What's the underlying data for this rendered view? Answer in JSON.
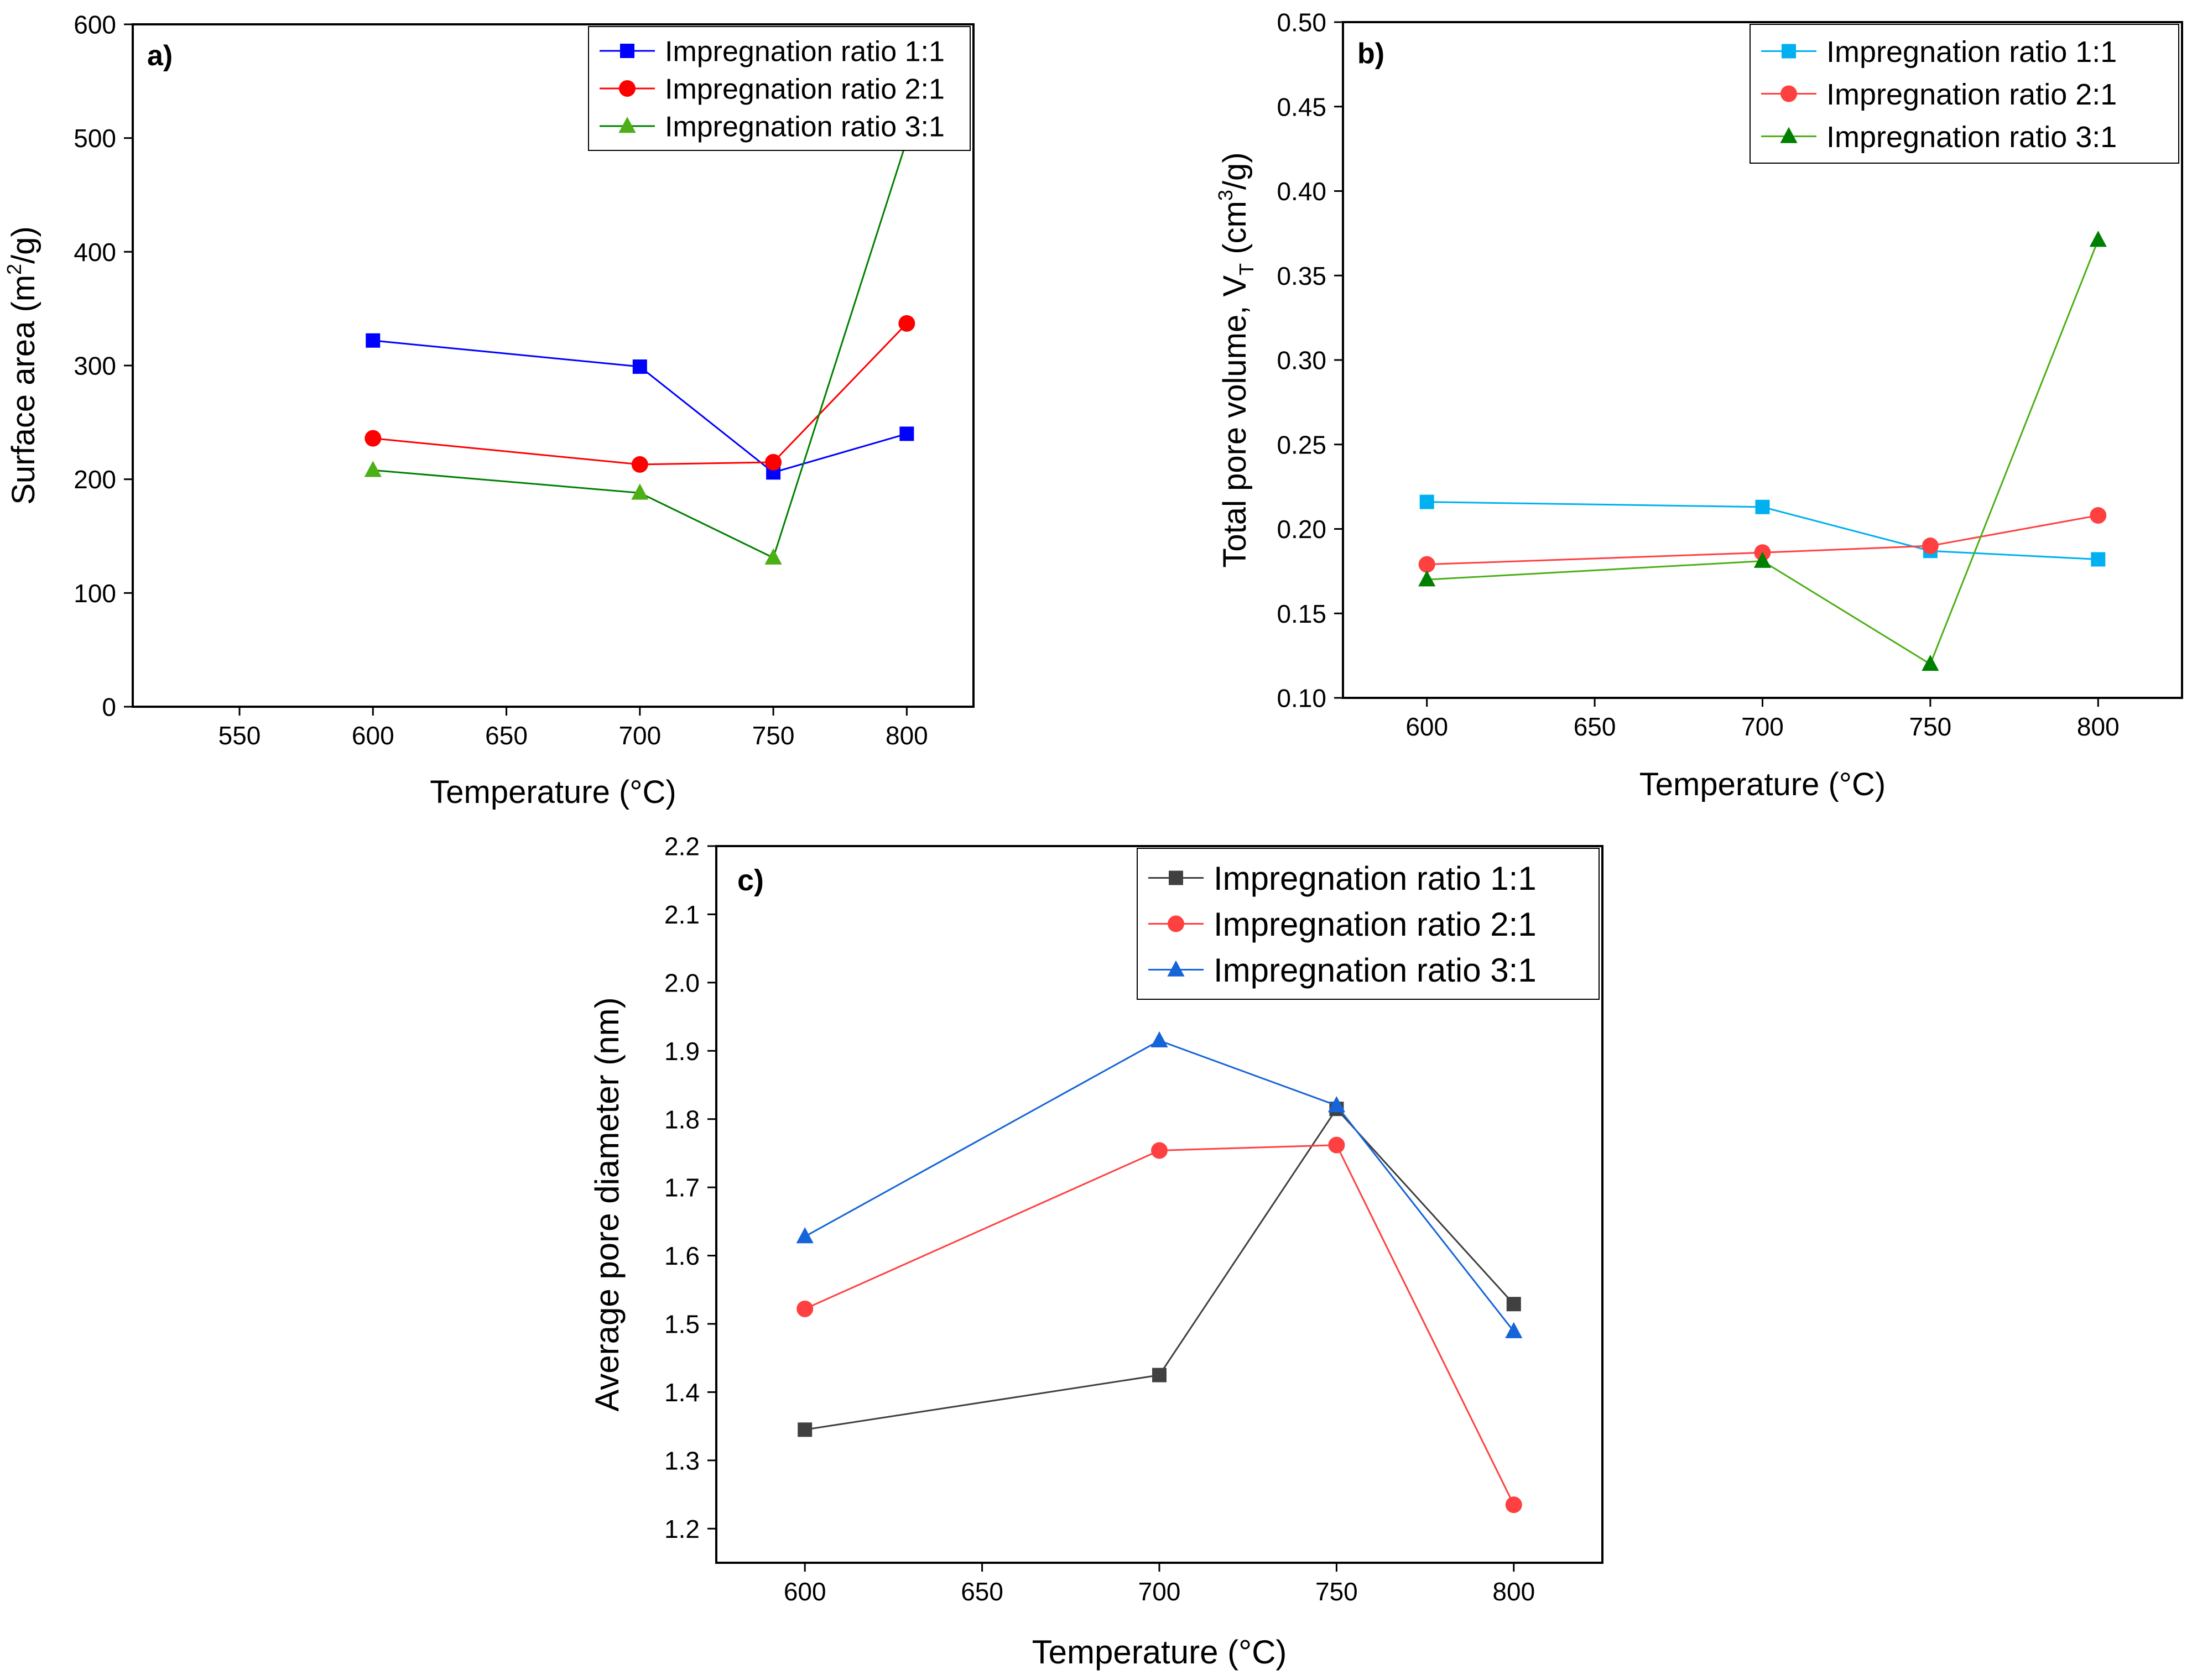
{
  "chart_data": [
    {
      "id": "a",
      "type": "line",
      "panel_label": "a)",
      "xlabel": "Temperature (°C)",
      "ylabel_parts": [
        "Surface area (m",
        "2",
        "/g)"
      ],
      "xlim": [
        510,
        825
      ],
      "ylim": [
        0,
        600
      ],
      "xticks": [
        550,
        600,
        650,
        700,
        750,
        800
      ],
      "yticks": [
        0,
        100,
        200,
        300,
        400,
        500,
        600
      ],
      "legend_position": "top-right",
      "series": [
        {
          "name": "Impregnation ratio 1:1",
          "color": "#0000ff",
          "marker": "square",
          "x": [
            600,
            700,
            750,
            800
          ],
          "y": [
            322,
            299,
            206,
            240
          ]
        },
        {
          "name": "Impregnation ratio 2:1",
          "color": "#ff0000",
          "marker": "circle",
          "x": [
            600,
            700,
            750,
            800
          ],
          "y": [
            236,
            213,
            215,
            337
          ]
        },
        {
          "name": "Impregnation ratio 3:1",
          "color": "#008000",
          "marker": "triangle",
          "markerColor": "#4caf15",
          "x": [
            600,
            700,
            750,
            800
          ],
          "y": [
            208,
            188,
            131,
            498
          ]
        }
      ]
    },
    {
      "id": "b",
      "type": "line",
      "panel_label": "b)",
      "xlabel": "Temperature (°C)",
      "ylabel_parts": [
        "Total pore volume, V",
        "T",
        " (cm",
        "3",
        "/g)"
      ],
      "xlim": [
        575,
        825
      ],
      "ylim": [
        0.1,
        0.5
      ],
      "xticks": [
        600,
        650,
        700,
        750,
        800
      ],
      "yticks": [
        0.1,
        0.15,
        0.2,
        0.25,
        0.3,
        0.35,
        0.4,
        0.45,
        0.5
      ],
      "legend_position": "top-right",
      "series": [
        {
          "name": "Impregnation ratio 1:1",
          "color": "#00b0f0",
          "marker": "square",
          "x": [
            600,
            700,
            750,
            800
          ],
          "y": [
            0.216,
            0.213,
            0.187,
            0.182
          ]
        },
        {
          "name": "Impregnation ratio 2:1",
          "color": "#ff4040",
          "marker": "circle",
          "x": [
            600,
            700,
            750,
            800
          ],
          "y": [
            0.179,
            0.186,
            0.19,
            0.208
          ]
        },
        {
          "name": "Impregnation ratio 3:1",
          "color": "#4caf15",
          "marker": "triangle",
          "markerColor": "#008000",
          "x": [
            600,
            700,
            750,
            800
          ],
          "y": [
            0.17,
            0.181,
            0.12,
            0.371
          ]
        }
      ]
    },
    {
      "id": "c",
      "type": "line",
      "panel_label": "c)",
      "xlabel": "Temperature (°C)",
      "ylabel_parts": [
        "Average pore diameter (nm)"
      ],
      "xlim": [
        575,
        825
      ],
      "ylim": [
        1.15,
        2.2
      ],
      "xticks": [
        600,
        650,
        700,
        750,
        800
      ],
      "yticks": [
        1.2,
        1.3,
        1.4,
        1.5,
        1.6,
        1.7,
        1.8,
        1.9,
        2.0,
        2.1,
        2.2
      ],
      "legend_position": "top-right",
      "series": [
        {
          "name": "Impregnation ratio 1:1",
          "color": "#404040",
          "marker": "square",
          "x": [
            600,
            700,
            750,
            800
          ],
          "y": [
            1.345,
            1.425,
            1.815,
            1.529
          ]
        },
        {
          "name": "Impregnation ratio 2:1",
          "color": "#ff4040",
          "marker": "circle",
          "x": [
            600,
            700,
            750,
            800
          ],
          "y": [
            1.522,
            1.754,
            1.762,
            1.235
          ]
        },
        {
          "name": "Impregnation ratio 3:1",
          "color": "#1565d8",
          "marker": "triangle",
          "x": [
            600,
            700,
            750,
            800
          ],
          "y": [
            1.628,
            1.915,
            1.82,
            1.489
          ]
        }
      ]
    }
  ]
}
